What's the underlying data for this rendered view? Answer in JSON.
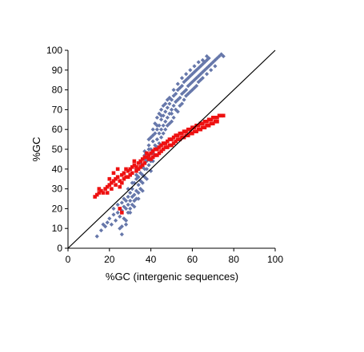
{
  "chart_data": {
    "type": "scatter",
    "title": "",
    "xlabel": "%GC (intergenic sequences)",
    "ylabel": "%GC",
    "xlim": [
      0,
      100
    ],
    "ylim": [
      0,
      100
    ],
    "xticks": [
      "0",
      "20",
      "40",
      "60",
      "80",
      "100"
    ],
    "yticks": [
      "0",
      "10",
      "20",
      "30",
      "40",
      "50",
      "60",
      "70",
      "80",
      "90",
      "100"
    ],
    "grid": false,
    "legend": "none",
    "reference_line": {
      "from": [
        0,
        0
      ],
      "to": [
        100,
        100
      ],
      "color": "#000000"
    },
    "series": [
      {
        "marker": "diamond",
        "color": "#6677aa",
        "points": [
          [
            14,
            6
          ],
          [
            16,
            9
          ],
          [
            17,
            12
          ],
          [
            18,
            11
          ],
          [
            19,
            13
          ],
          [
            20,
            15
          ],
          [
            21,
            12
          ],
          [
            22,
            17
          ],
          [
            22,
            20
          ],
          [
            23,
            14
          ],
          [
            24,
            18
          ],
          [
            24,
            22
          ],
          [
            25,
            10
          ],
          [
            25,
            16
          ],
          [
            26,
            19
          ],
          [
            26,
            23
          ],
          [
            26,
            7
          ],
          [
            27,
            21
          ],
          [
            27,
            15
          ],
          [
            27,
            25
          ],
          [
            28,
            20
          ],
          [
            28,
            24
          ],
          [
            28,
            12
          ],
          [
            29,
            18
          ],
          [
            29,
            22
          ],
          [
            29,
            26
          ],
          [
            30,
            20
          ],
          [
            30,
            28
          ],
          [
            30,
            24
          ],
          [
            31,
            22
          ],
          [
            31,
            26
          ],
          [
            31,
            30
          ],
          [
            32,
            24
          ],
          [
            32,
            27
          ],
          [
            32,
            33
          ],
          [
            33,
            25
          ],
          [
            33,
            29
          ],
          [
            33,
            35
          ],
          [
            34,
            28
          ],
          [
            34,
            32
          ],
          [
            34,
            36
          ],
          [
            35,
            30
          ],
          [
            35,
            34
          ],
          [
            35,
            38
          ],
          [
            36,
            33
          ],
          [
            36,
            37
          ],
          [
            36,
            41
          ],
          [
            37,
            36
          ],
          [
            37,
            40
          ],
          [
            37,
            45
          ],
          [
            38,
            40
          ],
          [
            38,
            44
          ],
          [
            38,
            48
          ],
          [
            39,
            42
          ],
          [
            39,
            46
          ],
          [
            39,
            52
          ],
          [
            40,
            44
          ],
          [
            40,
            50
          ],
          [
            40,
            56
          ],
          [
            41,
            48
          ],
          [
            41,
            54
          ],
          [
            41,
            60
          ],
          [
            42,
            52
          ],
          [
            42,
            58
          ],
          [
            42,
            63
          ],
          [
            43,
            55
          ],
          [
            43,
            60
          ],
          [
            43,
            66
          ],
          [
            44,
            58
          ],
          [
            44,
            62
          ],
          [
            44,
            68
          ],
          [
            45,
            60
          ],
          [
            45,
            65
          ],
          [
            45,
            70
          ],
          [
            46,
            62
          ],
          [
            46,
            67
          ],
          [
            46,
            72
          ],
          [
            47,
            64
          ],
          [
            47,
            69
          ],
          [
            48,
            66
          ],
          [
            48,
            71
          ],
          [
            48,
            75
          ],
          [
            49,
            68
          ],
          [
            49,
            73
          ],
          [
            50,
            70
          ],
          [
            50,
            75
          ],
          [
            50,
            64
          ],
          [
            51,
            72
          ],
          [
            51,
            77
          ],
          [
            52,
            74
          ],
          [
            52,
            78
          ],
          [
            53,
            75
          ],
          [
            53,
            80
          ],
          [
            54,
            76
          ],
          [
            54,
            81
          ],
          [
            55,
            78
          ],
          [
            55,
            82
          ],
          [
            56,
            79
          ],
          [
            56,
            84
          ],
          [
            57,
            80
          ],
          [
            57,
            85
          ],
          [
            58,
            82
          ],
          [
            58,
            86
          ],
          [
            59,
            83
          ],
          [
            59,
            87
          ],
          [
            60,
            84
          ],
          [
            60,
            88
          ],
          [
            61,
            85
          ],
          [
            61,
            89
          ],
          [
            62,
            86
          ],
          [
            62,
            90
          ],
          [
            63,
            87
          ],
          [
            63,
            91
          ],
          [
            64,
            88
          ],
          [
            64,
            92
          ],
          [
            65,
            89
          ],
          [
            65,
            93
          ],
          [
            66,
            90
          ],
          [
            66,
            94
          ],
          [
            67,
            91
          ],
          [
            67,
            95
          ],
          [
            68,
            92
          ],
          [
            68,
            96
          ],
          [
            69,
            93
          ],
          [
            70,
            94
          ],
          [
            71,
            95
          ],
          [
            72,
            96
          ],
          [
            73,
            97
          ],
          [
            74,
            98
          ],
          [
            75,
            97
          ],
          [
            30,
            18
          ],
          [
            32,
            21
          ],
          [
            34,
            25
          ],
          [
            28,
            14
          ],
          [
            26,
            11
          ],
          [
            36,
            29
          ],
          [
            38,
            35
          ],
          [
            40,
            39
          ],
          [
            42,
            47
          ],
          [
            44,
            53
          ],
          [
            46,
            58
          ],
          [
            48,
            62
          ],
          [
            50,
            68
          ],
          [
            52,
            70
          ],
          [
            54,
            72
          ],
          [
            56,
            75
          ],
          [
            58,
            78
          ],
          [
            60,
            80
          ],
          [
            62,
            82
          ],
          [
            64,
            85
          ],
          [
            33,
            40
          ],
          [
            35,
            43
          ],
          [
            37,
            49
          ],
          [
            39,
            55
          ],
          [
            41,
            44
          ],
          [
            43,
            51
          ],
          [
            45,
            56
          ],
          [
            47,
            60
          ],
          [
            49,
            63
          ],
          [
            51,
            66
          ],
          [
            53,
            69
          ],
          [
            55,
            73
          ],
          [
            57,
            77
          ],
          [
            59,
            79
          ],
          [
            61,
            81
          ],
          [
            63,
            84
          ],
          [
            65,
            86
          ],
          [
            67,
            88
          ],
          [
            69,
            90
          ],
          [
            71,
            92
          ],
          [
            29,
            30
          ],
          [
            31,
            33
          ],
          [
            33,
            37
          ],
          [
            35,
            41
          ],
          [
            37,
            47
          ],
          [
            39,
            50
          ],
          [
            41,
            57
          ],
          [
            43,
            62
          ],
          [
            45,
            67
          ],
          [
            47,
            73
          ],
          [
            49,
            76
          ],
          [
            51,
            80
          ],
          [
            53,
            83
          ],
          [
            55,
            86
          ],
          [
            57,
            88
          ],
          [
            59,
            90
          ],
          [
            61,
            92
          ],
          [
            63,
            94
          ],
          [
            65,
            95
          ],
          [
            67,
            97
          ]
        ]
      },
      {
        "marker": "square",
        "color": "#ee1111",
        "points": [
          [
            13,
            26
          ],
          [
            14,
            27
          ],
          [
            15,
            28
          ],
          [
            16,
            29
          ],
          [
            17,
            28
          ],
          [
            18,
            30
          ],
          [
            19,
            31
          ],
          [
            20,
            32
          ],
          [
            21,
            33
          ],
          [
            22,
            34
          ],
          [
            23,
            35
          ],
          [
            24,
            36
          ],
          [
            25,
            34
          ],
          [
            26,
            37
          ],
          [
            27,
            38
          ],
          [
            28,
            36
          ],
          [
            29,
            39
          ],
          [
            30,
            40
          ],
          [
            31,
            41
          ],
          [
            32,
            42
          ],
          [
            33,
            41
          ],
          [
            34,
            43
          ],
          [
            35,
            44
          ],
          [
            36,
            45
          ],
          [
            37,
            46
          ],
          [
            38,
            46
          ],
          [
            39,
            47
          ],
          [
            40,
            48
          ],
          [
            41,
            49
          ],
          [
            42,
            50
          ],
          [
            43,
            50
          ],
          [
            44,
            51
          ],
          [
            45,
            52
          ],
          [
            46,
            53
          ],
          [
            47,
            53
          ],
          [
            48,
            54
          ],
          [
            49,
            55
          ],
          [
            50,
            55
          ],
          [
            51,
            56
          ],
          [
            52,
            57
          ],
          [
            53,
            57
          ],
          [
            54,
            58
          ],
          [
            55,
            58
          ],
          [
            56,
            59
          ],
          [
            57,
            59
          ],
          [
            58,
            60
          ],
          [
            59,
            60
          ],
          [
            60,
            61
          ],
          [
            61,
            61
          ],
          [
            62,
            62
          ],
          [
            63,
            62
          ],
          [
            64,
            63
          ],
          [
            65,
            63
          ],
          [
            66,
            64
          ],
          [
            67,
            64
          ],
          [
            68,
            65
          ],
          [
            69,
            65
          ],
          [
            70,
            66
          ],
          [
            71,
            66
          ],
          [
            72,
            66
          ],
          [
            73,
            67
          ],
          [
            74,
            67
          ],
          [
            75,
            67
          ],
          [
            20,
            35
          ],
          [
            22,
            38
          ],
          [
            24,
            40
          ],
          [
            26,
            33
          ],
          [
            28,
            40
          ],
          [
            30,
            37
          ],
          [
            32,
            44
          ],
          [
            34,
            40
          ],
          [
            36,
            42
          ],
          [
            38,
            48
          ],
          [
            40,
            45
          ],
          [
            42,
            47
          ],
          [
            44,
            48
          ],
          [
            46,
            50
          ],
          [
            48,
            51
          ],
          [
            50,
            52
          ],
          [
            52,
            54
          ],
          [
            54,
            55
          ],
          [
            56,
            56
          ],
          [
            58,
            57
          ],
          [
            60,
            58
          ],
          [
            62,
            59
          ],
          [
            64,
            60
          ],
          [
            66,
            61
          ],
          [
            68,
            62
          ],
          [
            70,
            63
          ],
          [
            72,
            64
          ],
          [
            19,
            28
          ],
          [
            21,
            30
          ],
          [
            23,
            32
          ],
          [
            25,
            31
          ],
          [
            27,
            35
          ],
          [
            29,
            36
          ],
          [
            31,
            38
          ],
          [
            33,
            39
          ],
          [
            35,
            41
          ],
          [
            37,
            43
          ],
          [
            39,
            45
          ],
          [
            41,
            46
          ],
          [
            43,
            47
          ],
          [
            45,
            49
          ],
          [
            47,
            51
          ],
          [
            49,
            52
          ],
          [
            51,
            53
          ],
          [
            53,
            55
          ],
          [
            55,
            56
          ],
          [
            57,
            57
          ],
          [
            59,
            58
          ],
          [
            61,
            59
          ],
          [
            63,
            60
          ],
          [
            65,
            61
          ],
          [
            67,
            62
          ],
          [
            69,
            63
          ],
          [
            71,
            64
          ],
          [
            25,
            20
          ],
          [
            26,
            18
          ],
          [
            15,
            30
          ]
        ]
      }
    ]
  }
}
